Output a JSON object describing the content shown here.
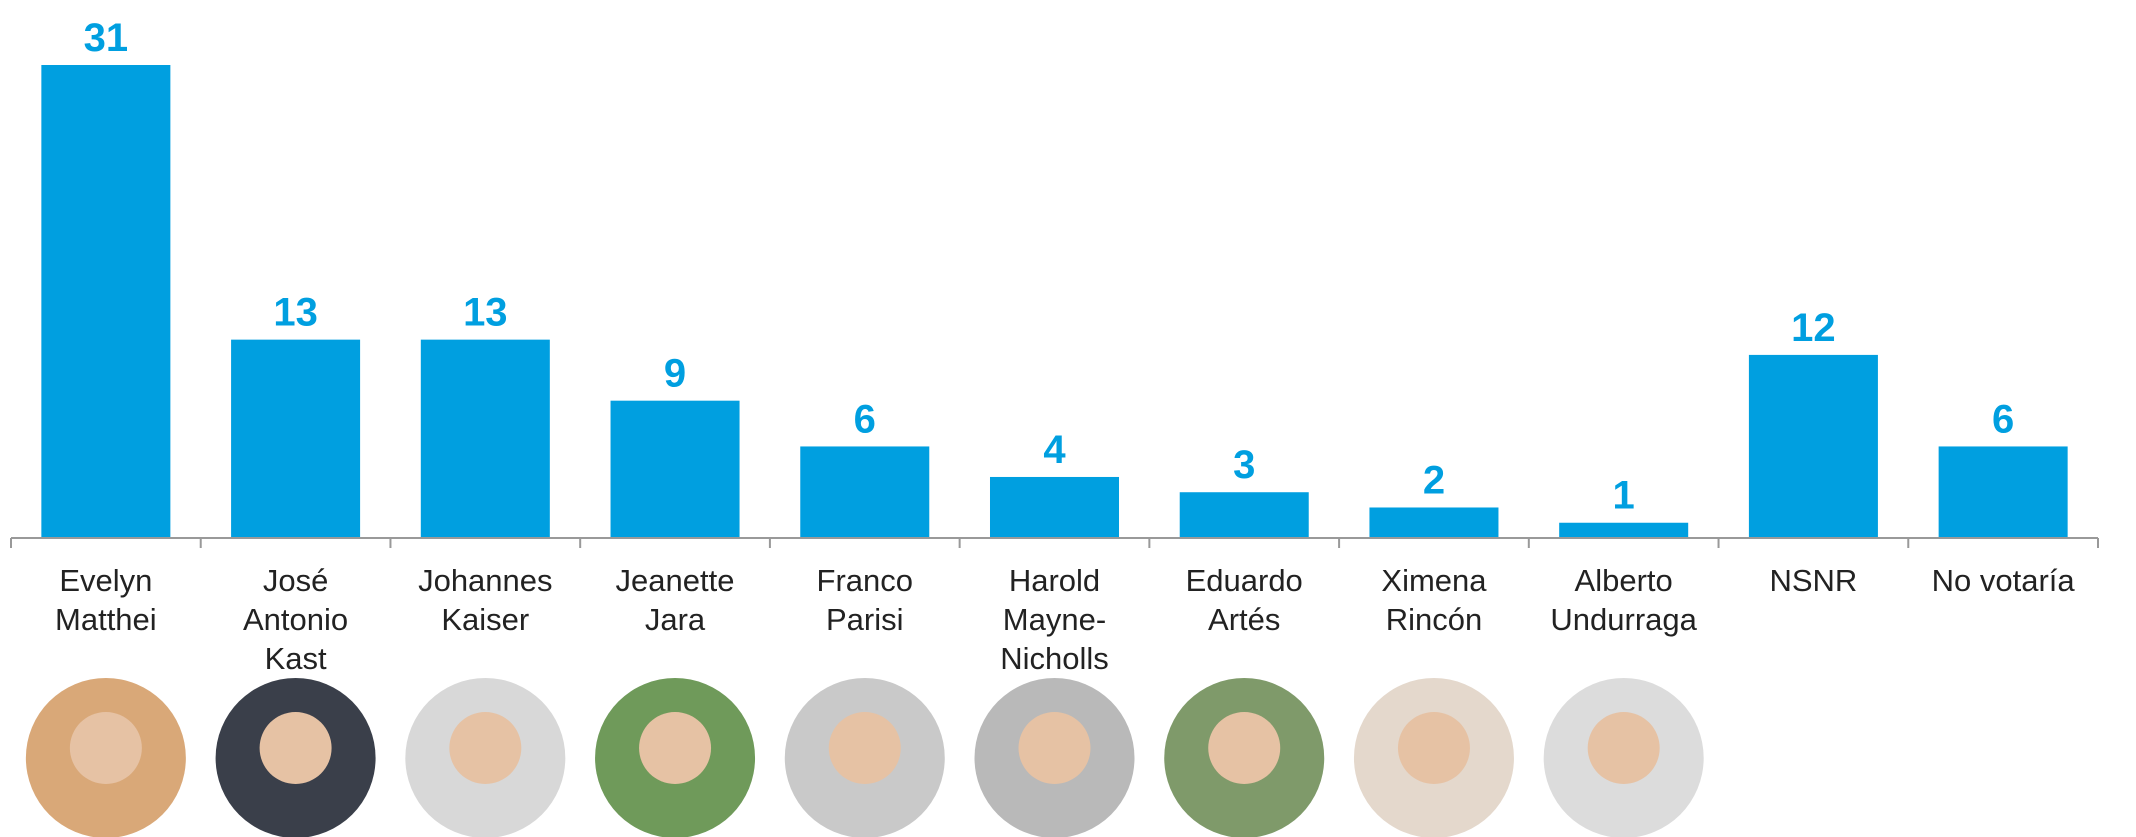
{
  "chart_data": {
    "type": "bar",
    "categories": [
      "Evelyn Matthei",
      "José Antonio Kast",
      "Johannes Kaiser",
      "Jeanette Jara",
      "Franco Parisi",
      "Harold Mayne-Nicholls",
      "Eduardo Artés",
      "Ximena Rincón",
      "Alberto Undurraga",
      "NSNR",
      "No votaría"
    ],
    "values": [
      31,
      13,
      13,
      9,
      6,
      4,
      3,
      2,
      1,
      12,
      6
    ],
    "color": "#009fe0",
    "ylim": [
      0,
      31
    ]
  }
}
